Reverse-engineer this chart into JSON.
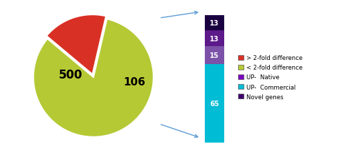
{
  "pie_values": [
    500,
    106
  ],
  "pie_colors": [
    "#b5c934",
    "#d93025"
  ],
  "pie_label_500": "500",
  "pie_label_106": "106",
  "pie_startangle": 77,
  "pie_explode": [
    0,
    0.05
  ],
  "bar_values": [
    65,
    15,
    13,
    13
  ],
  "bar_colors": [
    "#00bcd4",
    "#7b52a8",
    "#5c1a8a",
    "#1a0040"
  ],
  "bar_labels": [
    "65",
    "15",
    "13",
    "13"
  ],
  "legend_labels": [
    "> 2-fold difference",
    "< 2-fold difference",
    "UP-  Native",
    "UP-  Commercial",
    "Novel genes"
  ],
  "legend_colors": [
    "#d93025",
    "#b5c934",
    "#7b00c0",
    "#00bcd4",
    "#3d006e"
  ],
  "arrow_color": "#5b9bd5",
  "background_color": "#ffffff",
  "figsize": [
    5.0,
    2.26
  ],
  "dpi": 100
}
